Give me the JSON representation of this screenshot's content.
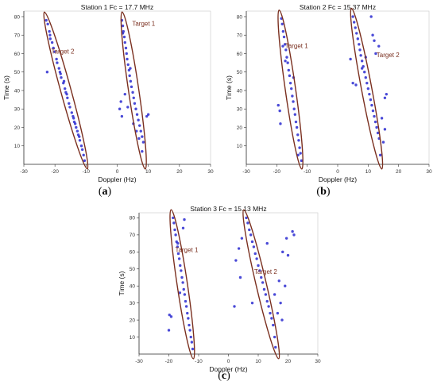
{
  "colors": {
    "marker": "#2a2ad0",
    "ellipse": "#7a2f1f",
    "annotation": "#7a2f1f",
    "axis": "#333333"
  },
  "captions": [
    {
      "pre": "(",
      "letter": "a",
      "post": ")"
    },
    {
      "pre": "(",
      "letter": "b",
      "post": ")"
    },
    {
      "pre": "(",
      "letter": "c",
      "post": ")"
    }
  ],
  "chart_data": [
    {
      "type": "scatter",
      "title": "Station 1 Fc = 17.7 MHz",
      "xlabel": "Doppler (Hz)",
      "ylabel": "Time (s)",
      "xlim": [
        -30,
        30
      ],
      "ylim": [
        0,
        83
      ],
      "xticks": [
        -30,
        -20,
        -10,
        0,
        10,
        20,
        30
      ],
      "yticks": [
        10,
        20,
        30,
        40,
        50,
        60,
        70,
        80
      ],
      "grid": false,
      "series": [
        {
          "x": [
            -22.8,
            -22.3,
            -21.8,
            -21.6,
            -20.9,
            -20.5,
            -20.1,
            -19.5,
            -19.3,
            -18.7,
            -18.2,
            -18.0,
            -17.3,
            -16.8,
            -16.5,
            -16.0,
            -15.5,
            -15.2,
            -14.6,
            -14.2,
            -13.8,
            -13.2,
            -12.8,
            -12.5,
            -12.0,
            -11.5,
            -11.2,
            -10.8,
            -10.5,
            -21.5,
            -18.4,
            -16.2,
            -14.0,
            -12.2,
            -17.1,
            -13.5,
            -22.5
          ],
          "y": [
            78,
            76,
            72,
            70,
            66,
            63,
            61,
            57,
            55,
            52,
            49,
            47,
            44,
            41,
            39,
            36,
            33,
            31,
            28,
            26,
            23,
            20,
            18,
            16,
            13,
            10,
            8,
            5,
            2,
            68,
            50,
            38,
            25,
            15,
            45,
            22,
            50
          ]
        },
        {
          "x": [
            1.5,
            1.8,
            2.0,
            2.3,
            2.5,
            2.8,
            3.0,
            3.2,
            3.5,
            3.8,
            4.0,
            4.3,
            4.6,
            5.0,
            5.3,
            5.6,
            6.0,
            6.4,
            6.8,
            7.2,
            7.6,
            8.0,
            8.4,
            1.2,
            0.8,
            1.5,
            2.5,
            3.4,
            5.2,
            6.2,
            9.5,
            10.0,
            1.8,
            4.2,
            7.0,
            8.0
          ],
          "y": [
            78,
            75,
            72,
            69,
            66,
            63,
            60,
            57,
            54,
            51,
            48,
            45,
            42,
            39,
            36,
            33,
            30,
            27,
            24,
            21,
            18,
            15,
            12,
            34,
            30,
            26,
            38,
            31,
            22,
            18,
            26,
            27,
            71,
            52,
            14,
            7
          ]
        }
      ],
      "annotations": [
        {
          "text": "Target 2",
          "x": -17.5,
          "y": 60
        },
        {
          "text": "Target 1",
          "x": 8.5,
          "y": 75
        }
      ],
      "ellipses": [
        {
          "x1": -23,
          "y1": 80,
          "x2": -10,
          "y2": 0
        },
        {
          "x1": 1.8,
          "y1": 80,
          "x2": 8.8,
          "y2": 0
        }
      ]
    },
    {
      "type": "scatter",
      "title": "Station 2 Fc = 15.37 MHz",
      "xlabel": "Doppler (Hz)",
      "ylabel": "Time (s)",
      "xlim": [
        -30,
        30
      ],
      "ylim": [
        0,
        83
      ],
      "xticks": [
        -30,
        -20,
        -10,
        0,
        10,
        20,
        30
      ],
      "yticks": [
        10,
        20,
        30,
        40,
        50,
        60,
        70,
        80
      ],
      "grid": false,
      "series": [
        {
          "x": [
            -18.5,
            -18.2,
            -17.9,
            -17.6,
            -17.3,
            -17.0,
            -16.7,
            -16.4,
            -16.1,
            -15.8,
            -15.5,
            -15.2,
            -14.9,
            -14.6,
            -14.3,
            -14.0,
            -13.7,
            -13.4,
            -13.1,
            -12.8,
            -12.5,
            -12.2,
            -11.9,
            -19.0,
            -19.5,
            -18.8,
            -14.5,
            -18.0,
            -13.0,
            -17.2
          ],
          "y": [
            79,
            76,
            72,
            69,
            65,
            62,
            58,
            55,
            51,
            48,
            44,
            41,
            37,
            34,
            30,
            27,
            23,
            20,
            16,
            13,
            9,
            6,
            2,
            29,
            32,
            22,
            47,
            64,
            5,
            56
          ]
        },
        {
          "x": [
            5.0,
            5.4,
            5.8,
            6.2,
            6.6,
            7.0,
            7.3,
            7.6,
            8.0,
            8.4,
            8.8,
            9.2,
            9.6,
            10.0,
            10.4,
            10.8,
            11.2,
            11.6,
            12.0,
            12.4,
            12.8,
            13.2,
            13.6,
            14.0,
            4.2,
            5.0,
            11.0,
            15.5,
            16.0,
            12.0,
            15.5,
            13.5,
            9.2,
            12.5,
            11.5,
            8.0,
            6.0,
            14.5,
            15.0
          ],
          "y": [
            80,
            77,
            74,
            71,
            68,
            65,
            62,
            59,
            56,
            53,
            50,
            47,
            44,
            41,
            38,
            35,
            32,
            29,
            26,
            23,
            20,
            17,
            14,
            5,
            57,
            44,
            80,
            36,
            38,
            67,
            19,
            64,
            58,
            60,
            70,
            52,
            43,
            25,
            12
          ]
        }
      ],
      "annotations": [
        {
          "text": "Target 1",
          "x": -13.5,
          "y": 63
        },
        {
          "text": "Target 2",
          "x": 16.5,
          "y": 58
        }
      ],
      "ellipses": [
        {
          "x1": -19,
          "y1": 81,
          "x2": -12,
          "y2": 0
        },
        {
          "x1": 4.8,
          "y1": 82,
          "x2": 14.2,
          "y2": 0
        }
      ]
    },
    {
      "type": "scatter",
      "title": "Station 3 Fc = 15.13 MHz",
      "xlabel": "Doppler (Hz)",
      "ylabel": "Time (s)",
      "xlim": [
        -30,
        30
      ],
      "ylim": [
        0,
        83
      ],
      "xticks": [
        -30,
        -20,
        -10,
        0,
        10,
        20,
        30
      ],
      "yticks": [
        10,
        20,
        30,
        40,
        50,
        60,
        70,
        80
      ],
      "grid": false,
      "series": [
        {
          "x": [
            -18.6,
            -18.3,
            -18.0,
            -17.7,
            -17.4,
            -17.1,
            -16.8,
            -16.5,
            -16.2,
            -15.9,
            -15.6,
            -15.3,
            -15.0,
            -14.7,
            -14.4,
            -14.1,
            -13.8,
            -13.5,
            -13.2,
            -12.9,
            -12.6,
            -12.3,
            -12.0,
            -20.0,
            -19.8,
            -19.2,
            -14.8,
            -15.2,
            -17.0,
            -16.3
          ],
          "y": [
            80,
            77,
            73,
            70,
            66,
            63,
            59,
            56,
            52,
            49,
            45,
            42,
            38,
            35,
            31,
            28,
            24,
            21,
            17,
            14,
            10,
            7,
            3,
            14,
            23,
            22,
            79,
            74,
            65,
            36
          ]
        },
        {
          "x": [
            6.0,
            6.5,
            7.0,
            7.5,
            8.0,
            8.5,
            9.0,
            9.5,
            10.0,
            10.5,
            11.0,
            11.5,
            12.0,
            12.5,
            13.0,
            13.5,
            14.0,
            14.5,
            15.0,
            15.5,
            15.8,
            2.5,
            3.5,
            4.5,
            4.0,
            2.0,
            16.5,
            17.5,
            18.0,
            19.0,
            20.0,
            22.0,
            21.5,
            18.2,
            13.0,
            17.0,
            15.5,
            8.0,
            19.5
          ],
          "y": [
            80,
            77,
            73,
            70,
            66,
            63,
            59,
            56,
            52,
            49,
            45,
            42,
            38,
            35,
            31,
            28,
            24,
            21,
            17,
            10,
            4,
            55,
            62,
            68,
            45,
            28,
            24,
            30,
            20,
            40,
            58,
            70,
            72,
            60,
            65,
            43,
            35,
            30,
            68
          ]
        }
      ],
      "annotations": [
        {
          "text": "Target 1",
          "x": -14,
          "y": 60
        },
        {
          "text": "Target 2",
          "x": 12.5,
          "y": 47
        }
      ],
      "ellipses": [
        {
          "x1": -19,
          "y1": 82,
          "x2": -12,
          "y2": 0
        },
        {
          "x1": 5.5,
          "y1": 82,
          "x2": 16.5,
          "y2": 0
        }
      ]
    }
  ]
}
